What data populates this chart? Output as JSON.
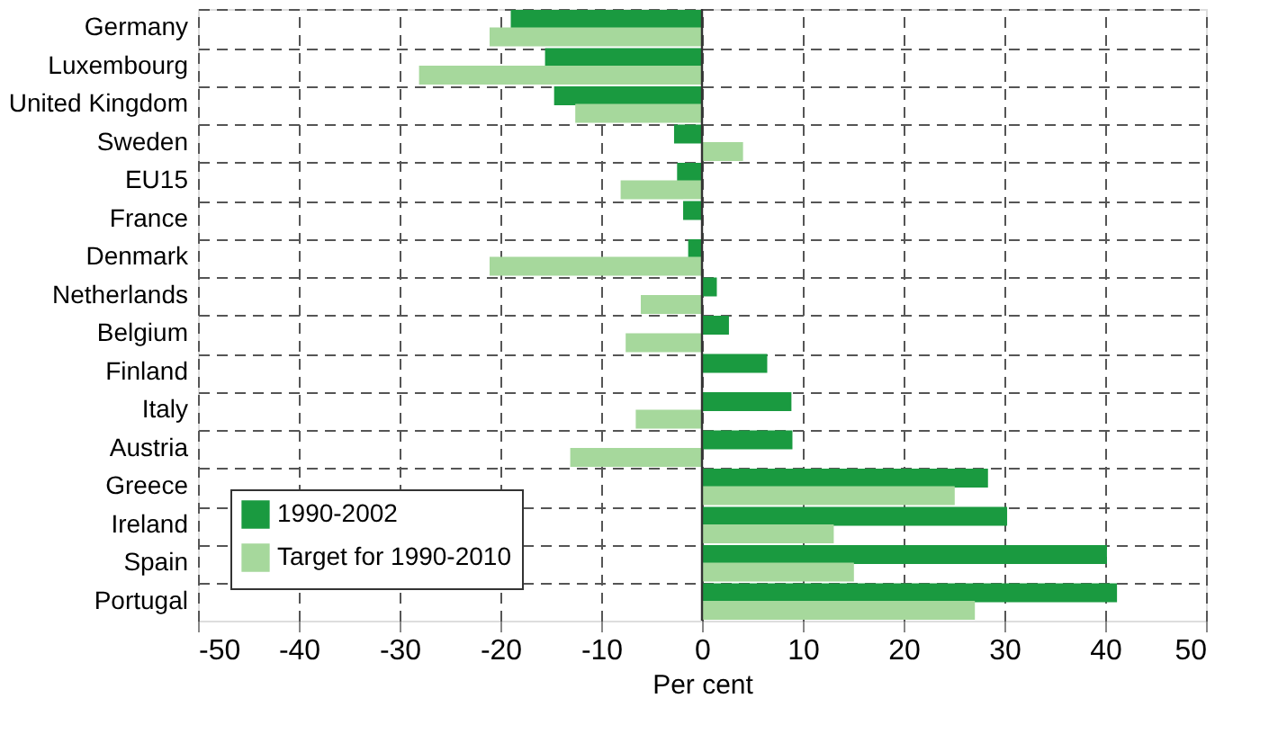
{
  "chart_data": {
    "type": "bar",
    "orientation": "horizontal",
    "xlabel": "Per cent",
    "categories": [
      "Germany",
      "Luxembourg",
      "United Kingdom",
      "Sweden",
      "EU15",
      "France",
      "Denmark",
      "Netherlands",
      "Belgium",
      "Finland",
      "Italy",
      "Austria",
      "Greece",
      "Ireland",
      "Spain",
      "Portugal"
    ],
    "series": [
      {
        "name": "1990-2002",
        "color": "#1a9a40",
        "values": [
          -18.9,
          -15.5,
          -14.6,
          -2.7,
          -2.4,
          -1.8,
          -1.3,
          1.4,
          2.6,
          6.4,
          8.8,
          8.9,
          28.3,
          30.2,
          40.1,
          41.1
        ]
      },
      {
        "name": "Target for 1990-2010",
        "color": "#a6d89c",
        "values": [
          -21,
          -28,
          -12.5,
          4,
          -8,
          0,
          -21,
          -6,
          -7.5,
          0,
          -6.5,
          -13,
          25,
          13,
          15,
          27
        ]
      }
    ],
    "xlim": [
      -50,
      50
    ],
    "xticks": [
      -50,
      -40,
      -30,
      -20,
      -10,
      0,
      10,
      20,
      30,
      40,
      50
    ],
    "grid": true,
    "legend": "bottom left"
  }
}
